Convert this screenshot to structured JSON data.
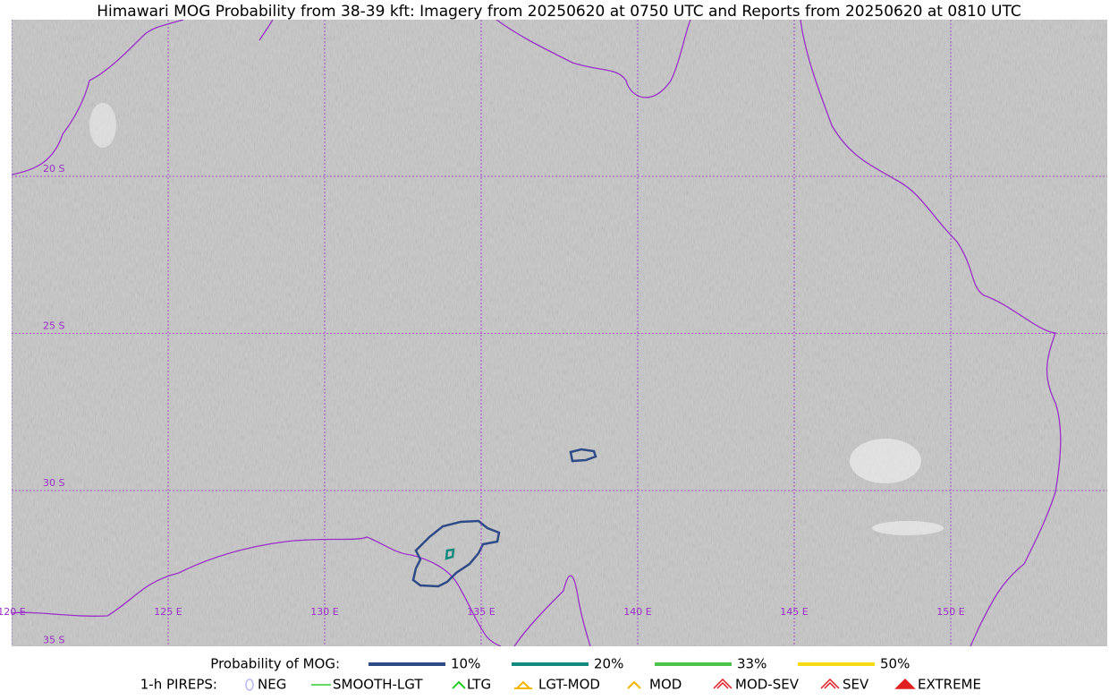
{
  "title": "Himawari MOG Probability from 38-39 kft: Imagery from 20250620 at 0750 UTC and Reports from 20250620 at 0810 UTC",
  "map": {
    "lat_labels": [
      "20 S",
      "25 S",
      "30 S",
      "35 S"
    ],
    "lon_labels": [
      "120 E",
      "125 E",
      "130 E",
      "135 E",
      "140 E",
      "145 E",
      "150 E"
    ]
  },
  "legend": {
    "probability_title": "Probability of MOG:",
    "probability_items": [
      {
        "label": "10%",
        "color": "#2e4a87"
      },
      {
        "label": "20%",
        "color": "#138a80"
      },
      {
        "label": "33%",
        "color": "#4cc44c"
      },
      {
        "label": "50%",
        "color": "#f5dc14"
      }
    ],
    "pireps_title": "1-h PIREPS:",
    "pireps_items": [
      {
        "label": "NEG",
        "color": "#b8b8f0"
      },
      {
        "label": "SMOOTH-LGT",
        "color": "#33cc33"
      },
      {
        "label": "LTG",
        "color": "#22cc22"
      },
      {
        "label": "LGT-MOD",
        "color": "#f5b400"
      },
      {
        "label": "MOD",
        "color": "#f5b400"
      },
      {
        "label": "MOD-SEV",
        "color": "#e02020"
      },
      {
        "label": "SEV",
        "color": "#e02020"
      },
      {
        "label": "EXTREME",
        "color": "#e02020"
      }
    ]
  }
}
